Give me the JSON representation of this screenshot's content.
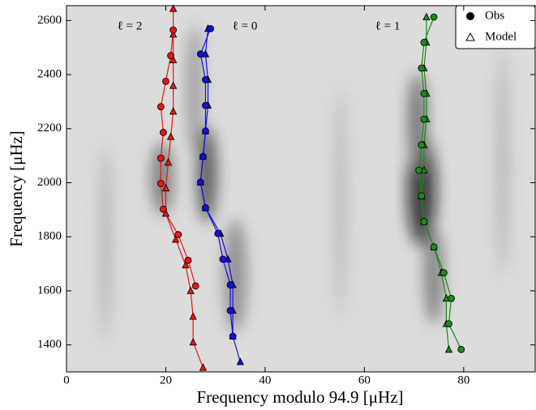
{
  "chart_data": {
    "type": "scatter",
    "xlabel": "Frequency modulo 94.9 [μHz]",
    "ylabel": "Frequency [μHz]",
    "xlim": [
      0,
      94.4
    ],
    "ylim": [
      1300,
      2655
    ],
    "xticks": [
      0,
      20,
      40,
      60,
      80
    ],
    "yticks": [
      1400,
      1600,
      1800,
      2000,
      2200,
      2400,
      2600
    ],
    "legend": [
      "Obs",
      "Model"
    ],
    "legend_position": "upper right",
    "groups": [
      {
        "label": "ℓ = 2",
        "color": "#e8150f",
        "obs": {
          "x": [
            26,
            24.5,
            22.5,
            19.5,
            19,
            19,
            19.5,
            19,
            20,
            21,
            21.5
          ],
          "y": [
            1618,
            1713,
            1808,
            1902,
            1997,
            2091,
            2186,
            2281,
            2375,
            2470,
            2565
          ]
        },
        "model": {
          "x": [
            27.5,
            25.5,
            25.5,
            25,
            24,
            22,
            20,
            20,
            20.5,
            21,
            21.5,
            21.5,
            21.5,
            21.5,
            21.5
          ],
          "y": [
            1316,
            1410,
            1505,
            1600,
            1695,
            1790,
            1886,
            1980,
            2075,
            2170,
            2264,
            2359,
            2454,
            2549,
            2644
          ]
        }
      },
      {
        "label": "ℓ = 0",
        "color": "#1010e0",
        "obs": {
          "x": [
            33.5,
            33,
            33,
            31.5,
            30.5,
            28,
            27,
            27.5,
            28,
            28,
            28,
            27,
            29
          ],
          "y": [
            1432,
            1527,
            1622,
            1717,
            1812,
            1907,
            2002,
            2097,
            2191,
            2286,
            2381,
            2476,
            2570
          ]
        },
        "model": {
          "x": [
            35,
            33.5,
            33.5,
            33.5,
            32.5,
            31,
            28,
            27,
            27.5,
            28,
            28.5,
            28.5,
            28,
            28.5
          ],
          "y": [
            1337,
            1432,
            1527,
            1622,
            1717,
            1812,
            1907,
            2002,
            2097,
            2191,
            2286,
            2381,
            2476,
            2570
          ]
        }
      },
      {
        "label": "ℓ = 1",
        "color": "#1a8a1a",
        "obs": {
          "x": [
            79.5,
            77,
            77.5,
            76,
            74,
            72,
            71.5,
            71,
            71.5,
            72,
            72,
            71.5,
            72,
            74
          ],
          "y": [
            1383,
            1478,
            1572,
            1667,
            1762,
            1856,
            1951,
            2046,
            2140,
            2235,
            2330,
            2424,
            2519,
            2613
          ]
        },
        "model": {
          "x": [
            77,
            76.5,
            76.5,
            75.5,
            74,
            72,
            71.5,
            72,
            72,
            72.5,
            72.5,
            72,
            72.5,
            72.5
          ],
          "y": [
            1383,
            1478,
            1572,
            1667,
            1762,
            1856,
            1951,
            2046,
            2140,
            2235,
            2330,
            2424,
            2519,
            2613
          ]
        }
      }
    ]
  }
}
